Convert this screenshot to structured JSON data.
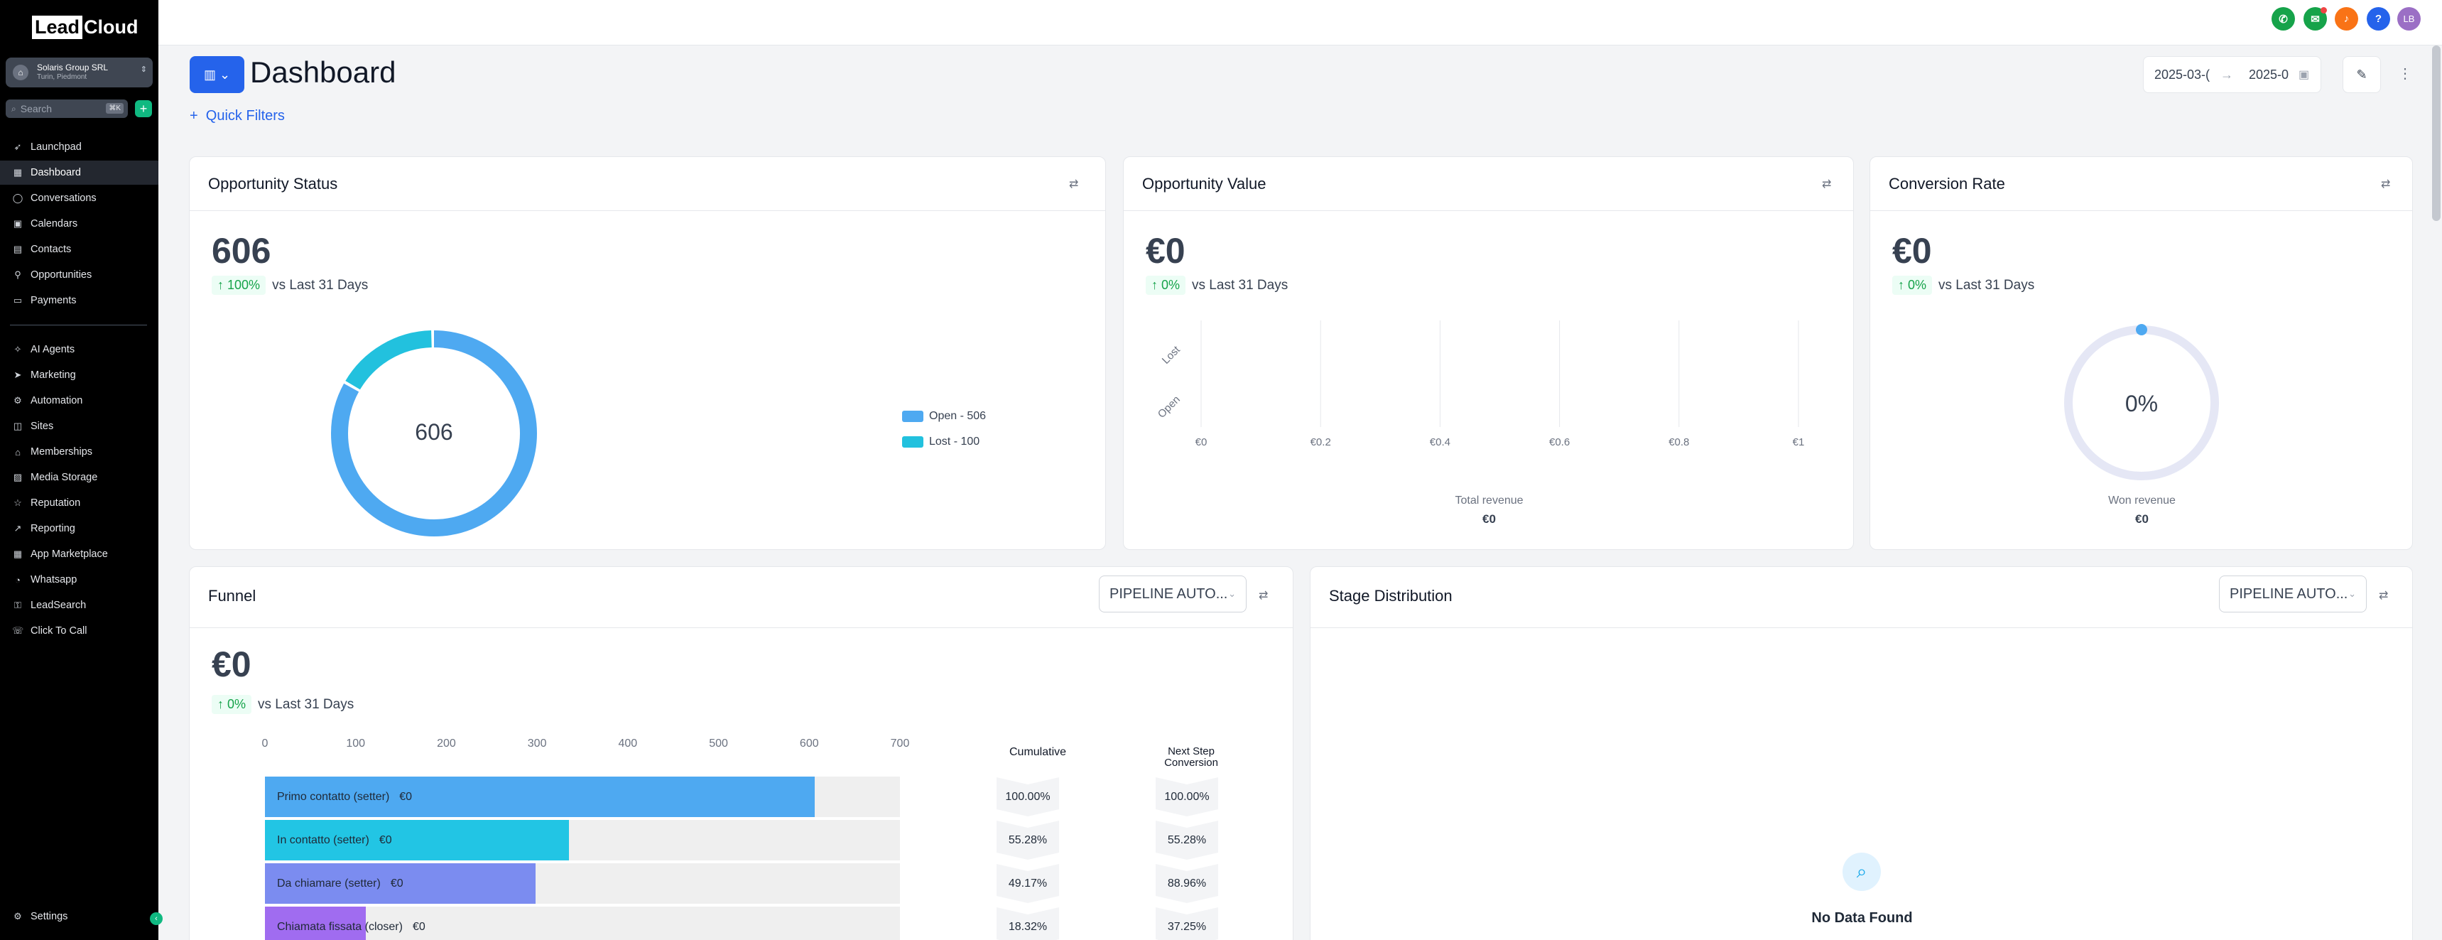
{
  "sidebar": {
    "logo_box": "Lead",
    "logo_rest": "Cloud",
    "account": {
      "name": "Solaris Group SRL",
      "location": "Turin, Piedmont"
    },
    "search": {
      "placeholder": "Search",
      "shortcut": "⌘K"
    },
    "items": [
      {
        "label": "Launchpad",
        "icon": "rocket-icon"
      },
      {
        "label": "Dashboard",
        "icon": "grid-icon"
      },
      {
        "label": "Conversations",
        "icon": "chat-icon"
      },
      {
        "label": "Calendars",
        "icon": "calendar-icon"
      },
      {
        "label": "Contacts",
        "icon": "contacts-icon"
      },
      {
        "label": "Opportunities",
        "icon": "filter-icon"
      },
      {
        "label": "Payments",
        "icon": "card-icon"
      },
      {
        "label": "AI Agents",
        "icon": "bot-icon"
      },
      {
        "label": "Marketing",
        "icon": "send-icon"
      },
      {
        "label": "Automation",
        "icon": "automation-icon"
      },
      {
        "label": "Sites",
        "icon": "sites-icon"
      },
      {
        "label": "Memberships",
        "icon": "members-icon"
      },
      {
        "label": "Media Storage",
        "icon": "media-icon"
      },
      {
        "label": "Reputation",
        "icon": "star-icon"
      },
      {
        "label": "Reporting",
        "icon": "chart-icon"
      },
      {
        "label": "App Marketplace",
        "icon": "apps-icon"
      },
      {
        "label": "Whatsapp",
        "icon": "whatsapp-icon"
      },
      {
        "label": "LeadSearch",
        "icon": "lock-icon"
      },
      {
        "label": "Click To Call",
        "icon": "phone-book-icon"
      }
    ],
    "settings": "Settings"
  },
  "topbar": {
    "avatar_initials": "LB"
  },
  "header": {
    "title": "Dashboard",
    "quick_filters": "Quick Filters",
    "date_from": "2025-03-(",
    "date_to": "2025-0"
  },
  "opportunity_status": {
    "title": "Opportunity Status",
    "value": "606",
    "delta": "100%",
    "delta_label": "vs Last 31 Days",
    "center": "606"
  },
  "opportunity_value": {
    "title": "Opportunity Value",
    "value": "€0",
    "delta": "0%",
    "delta_label": "vs Last 31 Days",
    "footer_label": "Total revenue",
    "footer_value": "€0"
  },
  "conversion_rate": {
    "title": "Conversion Rate",
    "value": "€0",
    "delta": "0%",
    "delta_label": "vs Last 31 Days",
    "center": "0%",
    "footer_label": "Won revenue",
    "footer_value": "€0"
  },
  "funnel": {
    "title": "Funnel",
    "pipeline": "PIPELINE AUTO...",
    "value": "€0",
    "delta": "0%",
    "delta_label": "vs Last 31 Days",
    "col_cumulative": "Cumulative",
    "col_next": "Next Step Conversion"
  },
  "stage_distribution": {
    "title": "Stage Distribution",
    "pipeline": "PIPELINE AUTO...",
    "empty": "No Data Found"
  },
  "chart_data": [
    {
      "type": "pie",
      "title": "Opportunity Status",
      "categories": [
        "Open",
        "Lost"
      ],
      "values": [
        506,
        100
      ],
      "legend": [
        "Open - 506",
        "Lost - 100"
      ],
      "colors": [
        "#4ea9f1",
        "#22c1de"
      ]
    },
    {
      "type": "bar",
      "title": "Opportunity Value",
      "categories": [
        "Open",
        "Lost"
      ],
      "values": [
        0,
        0
      ],
      "x_ticks": [
        "€0",
        "€0.2",
        "€0.4",
        "€0.6",
        "€0.8",
        "€1"
      ],
      "xlim": [
        0,
        1
      ]
    },
    {
      "type": "bar",
      "title": "Funnel",
      "categories": [
        "Primo contatto (setter)",
        "In contatto (setter)",
        "Da chiamare (setter)",
        "Chiamata fissata (closer)"
      ],
      "values": [
        606,
        335,
        298,
        111
      ],
      "labels": [
        "€0",
        "€0",
        "€0",
        "€0"
      ],
      "x_ticks": [
        0,
        100,
        200,
        300,
        400,
        500,
        600,
        700
      ],
      "xlim": [
        0,
        700
      ],
      "cumulative": [
        "100.00%",
        "55.28%",
        "49.17%",
        "18.32%"
      ],
      "next_step_conversion": [
        "100.00%",
        "55.28%",
        "88.96%",
        "37.25%"
      ],
      "colors": [
        "#4ea9f1",
        "#22c5e4",
        "#7b8cf0",
        "#a06cf0"
      ]
    }
  ]
}
